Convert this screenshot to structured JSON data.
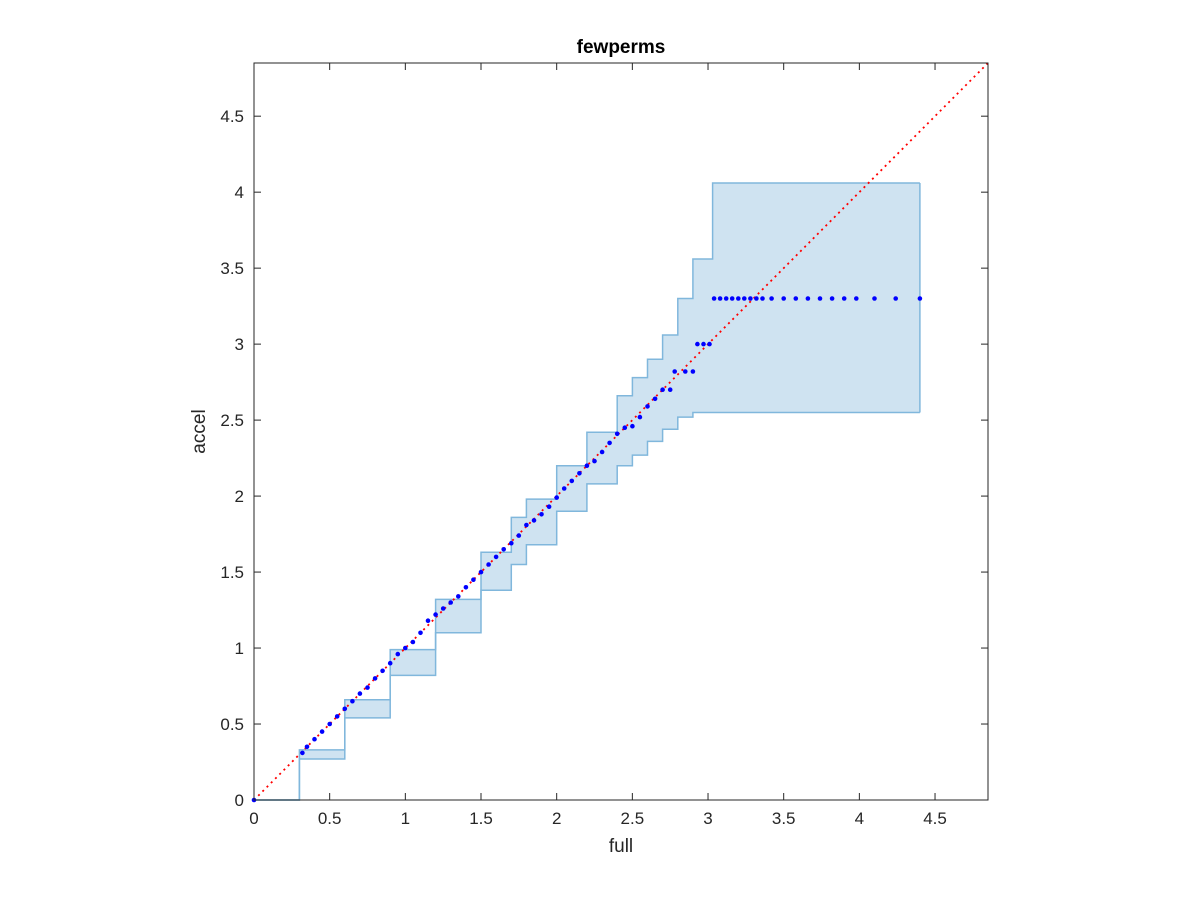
{
  "chart_data": {
    "type": "scatter",
    "title": "fewperms",
    "xlabel": "full",
    "ylabel": "accel",
    "xlim": [
      0,
      4.85
    ],
    "ylim": [
      0,
      4.85
    ],
    "xticks": [
      "0",
      "0.5",
      "1",
      "1.5",
      "2",
      "2.5",
      "3",
      "3.5",
      "4",
      "4.5"
    ],
    "yticks": [
      "0",
      "0.5",
      "1",
      "1.5",
      "2",
      "2.5",
      "3",
      "3.5",
      "4",
      "4.5"
    ],
    "grid": false,
    "reference_line": {
      "style": "dotted",
      "color": "#ff0000",
      "from": [
        0,
        0
      ],
      "to": [
        4.85,
        4.85
      ]
    },
    "band": {
      "color": "#cfe3f1",
      "edge_color": "#80b7dc",
      "x": [
        0,
        0.3,
        0.6,
        0.9,
        1.2,
        1.5,
        1.7,
        1.8,
        2.0,
        2.2,
        2.4,
        2.5,
        2.6,
        2.7,
        2.8,
        2.9,
        3.03,
        3.03,
        4.4
      ],
      "upper": [
        0,
        0.33,
        0.66,
        0.99,
        1.32,
        1.63,
        1.86,
        1.98,
        2.2,
        2.42,
        2.66,
        2.78,
        2.9,
        3.06,
        3.3,
        3.56,
        3.56,
        4.06,
        4.06
      ],
      "lower": [
        0,
        0.27,
        0.54,
        0.82,
        1.1,
        1.38,
        1.55,
        1.68,
        1.9,
        2.08,
        2.2,
        2.27,
        2.36,
        2.44,
        2.52,
        2.55,
        2.55,
        2.55,
        2.55
      ]
    },
    "series": [
      {
        "color": "#0000ff",
        "marker": "dot",
        "points": [
          [
            0,
            0
          ],
          [
            0.32,
            0.31
          ],
          [
            0.35,
            0.35
          ],
          [
            0.4,
            0.4
          ],
          [
            0.45,
            0.45
          ],
          [
            0.5,
            0.5
          ],
          [
            0.55,
            0.55
          ],
          [
            0.6,
            0.6
          ],
          [
            0.65,
            0.65
          ],
          [
            0.7,
            0.7
          ],
          [
            0.75,
            0.74
          ],
          [
            0.8,
            0.8
          ],
          [
            0.85,
            0.85
          ],
          [
            0.9,
            0.9
          ],
          [
            0.95,
            0.96
          ],
          [
            1.0,
            1.0
          ],
          [
            1.05,
            1.04
          ],
          [
            1.1,
            1.1
          ],
          [
            1.15,
            1.18
          ],
          [
            1.2,
            1.22
          ],
          [
            1.25,
            1.26
          ],
          [
            1.3,
            1.3
          ],
          [
            1.35,
            1.34
          ],
          [
            1.4,
            1.4
          ],
          [
            1.45,
            1.45
          ],
          [
            1.5,
            1.5
          ],
          [
            1.55,
            1.55
          ],
          [
            1.6,
            1.6
          ],
          [
            1.65,
            1.65
          ],
          [
            1.7,
            1.69
          ],
          [
            1.75,
            1.74
          ],
          [
            1.8,
            1.81
          ],
          [
            1.85,
            1.84
          ],
          [
            1.9,
            1.88
          ],
          [
            1.95,
            1.93
          ],
          [
            2.0,
            1.99
          ],
          [
            2.05,
            2.05
          ],
          [
            2.1,
            2.1
          ],
          [
            2.15,
            2.15
          ],
          [
            2.2,
            2.2
          ],
          [
            2.25,
            2.23
          ],
          [
            2.3,
            2.29
          ],
          [
            2.35,
            2.35
          ],
          [
            2.4,
            2.41
          ],
          [
            2.45,
            2.45
          ],
          [
            2.5,
            2.46
          ],
          [
            2.55,
            2.52
          ],
          [
            2.6,
            2.59
          ],
          [
            2.65,
            2.64
          ],
          [
            2.7,
            2.7
          ],
          [
            2.75,
            2.7
          ],
          [
            2.78,
            2.82
          ],
          [
            2.85,
            2.82
          ],
          [
            2.9,
            2.82
          ],
          [
            2.93,
            3.0
          ],
          [
            2.97,
            3.0
          ],
          [
            3.01,
            3.0
          ],
          [
            3.04,
            3.3
          ],
          [
            3.08,
            3.3
          ],
          [
            3.12,
            3.3
          ],
          [
            3.16,
            3.3
          ],
          [
            3.2,
            3.3
          ],
          [
            3.24,
            3.3
          ],
          [
            3.28,
            3.3
          ],
          [
            3.32,
            3.3
          ],
          [
            3.36,
            3.3
          ],
          [
            3.42,
            3.3
          ],
          [
            3.5,
            3.3
          ],
          [
            3.58,
            3.3
          ],
          [
            3.66,
            3.3
          ],
          [
            3.74,
            3.3
          ],
          [
            3.82,
            3.3
          ],
          [
            3.9,
            3.3
          ],
          [
            3.98,
            3.3
          ],
          [
            4.1,
            3.3
          ],
          [
            4.24,
            3.3
          ],
          [
            4.4,
            3.3
          ]
        ]
      }
    ]
  }
}
